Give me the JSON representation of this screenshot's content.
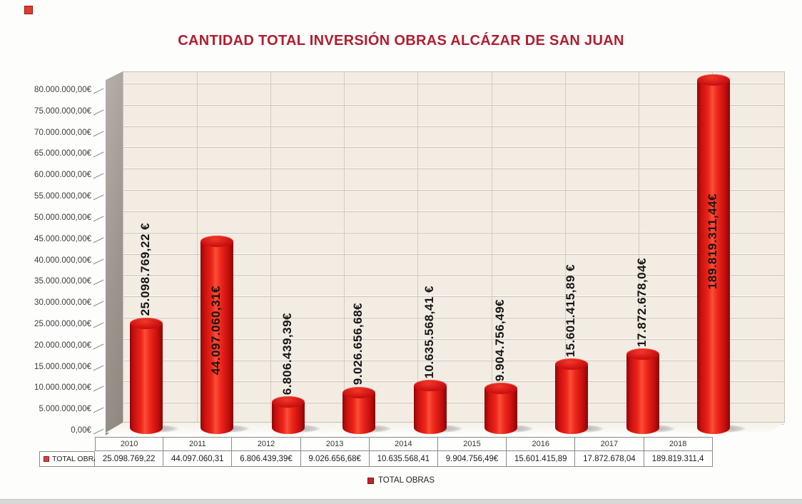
{
  "chart_data": {
    "type": "bar",
    "style": "3d-cylinder",
    "title": "CANTIDAD TOTAL INVERSIÓN OBRAS ALCÁZAR DE SAN JUAN",
    "series_name": "TOTAL OBRAS",
    "categories": [
      "2010",
      "2011",
      "2012",
      "2013",
      "2014",
      "2015",
      "2016",
      "2017",
      "2018"
    ],
    "values": [
      25098769.22,
      44097060.31,
      6806439.39,
      9026656.68,
      10635568.41,
      9904756.49,
      15601415.89,
      17872678.04,
      189819311.44
    ],
    "bar_labels": [
      "25.098.769,22 €",
      "44.097.060,31€",
      "6.806.439,39€",
      "9.026.656,68€",
      "10.635.568,41 €",
      "9.904.756,49€",
      "15.601.415,89 €",
      "17.872.678,04€",
      "189.819.311,44€"
    ],
    "bar_label_inside": [
      false,
      true,
      false,
      false,
      false,
      false,
      false,
      false,
      true
    ],
    "table_values": [
      "25.098.769,22",
      "44.097.060,31",
      "6.806.439,39€",
      "9.026.656,68€",
      "10.635.568,41",
      "9.904.756,49€",
      "15.601.415,89",
      "17.872.678,04",
      "189.819.311,4"
    ],
    "y_axis_labels": [
      "80.000.000,00€",
      "75.000.000,00€",
      "70.000.000,00€",
      "65.000.000,00€",
      "60.000.000,00€",
      "55.000.000,00€",
      "50.000.000,00€",
      "45.000.000,00€",
      "40.000.000,00€",
      "35.000.000,00€",
      "30.000.000,00€",
      "25.000.000,00€",
      "20.000.000,00€",
      "15.000.000,00€",
      "10.000.000,00€",
      "5.000.000,00€",
      "0,00€"
    ],
    "ylim": [
      0,
      80000000
    ],
    "y_tick_step": 5000000,
    "grid": true,
    "legend": {
      "label": "TOTAL OBRAS",
      "position": "bottom"
    },
    "colors": {
      "title": "#B01E2E",
      "bar": "#DD1A1A",
      "back_wall": "#F2ECE3",
      "side_wall": "#A49D95",
      "gridline": "#D9D2C7",
      "table_border": "#8A8A8A",
      "legend_marker": "#C2271F",
      "bar_label_text": "#151515"
    }
  }
}
